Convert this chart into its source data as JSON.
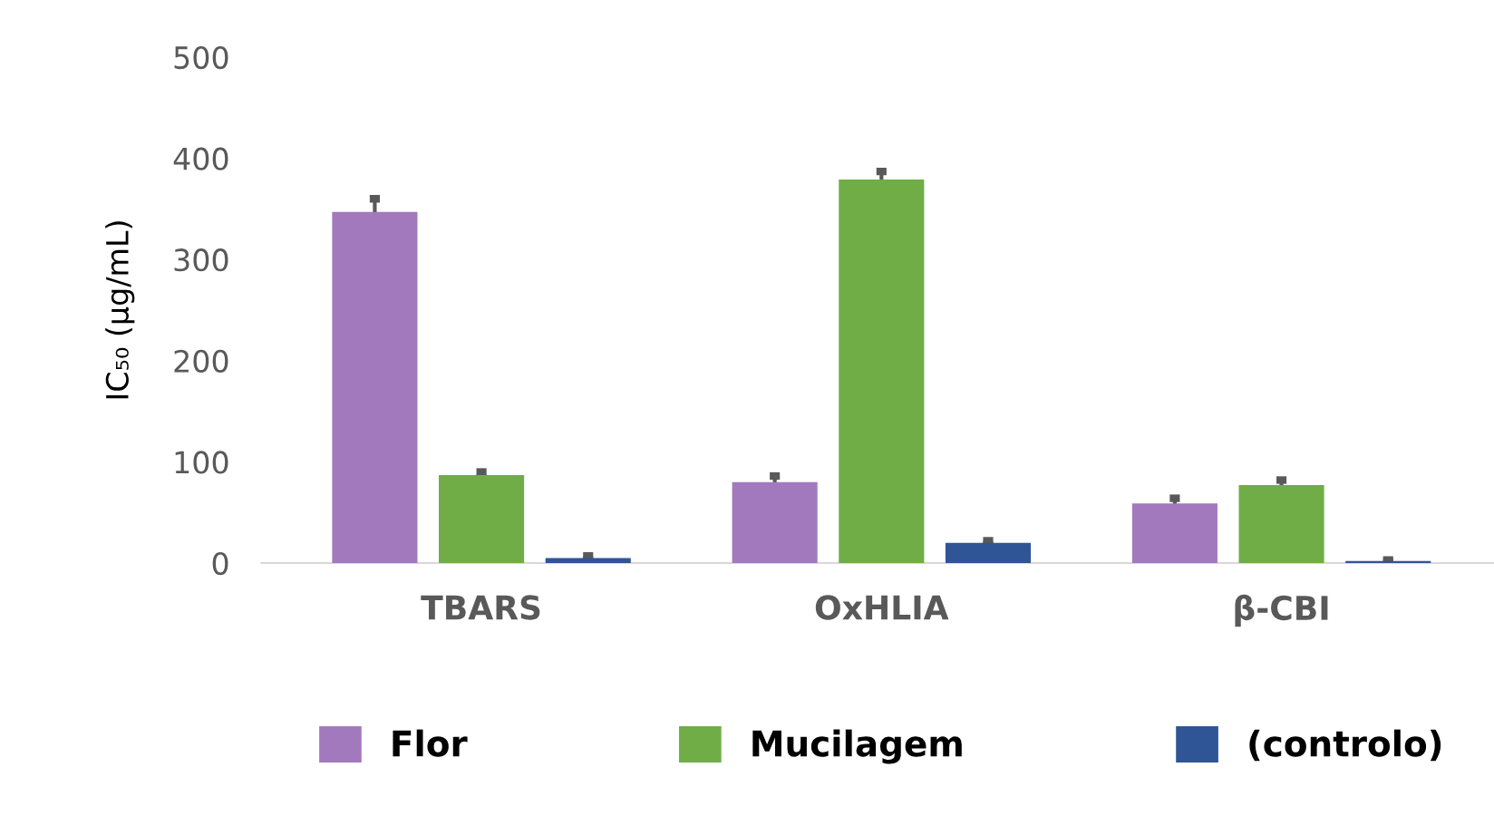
{
  "chart_data": {
    "type": "bar",
    "ylabel": "IC₅₀ (µg/mL)",
    "categories": [
      "TBARS",
      "OxHLIA",
      "β-CBI"
    ],
    "series": [
      {
        "name": "Flor",
        "color": "#a379bd",
        "values": [
          347,
          80,
          59
        ],
        "errors": [
          13,
          6,
          5
        ]
      },
      {
        "name": "Mucilagem",
        "color": "#70ad47",
        "values": [
          87,
          379,
          77
        ],
        "errors": [
          3,
          8,
          5
        ]
      },
      {
        "name": "(controlo)",
        "color": "#2f5597",
        "values": [
          5,
          20,
          2
        ],
        "errors": [
          2,
          2,
          1
        ]
      }
    ],
    "ylim": [
      0,
      500
    ],
    "yticks": [
      0,
      100,
      200,
      300,
      400,
      500
    ],
    "grid": false,
    "legend": "bottom"
  }
}
